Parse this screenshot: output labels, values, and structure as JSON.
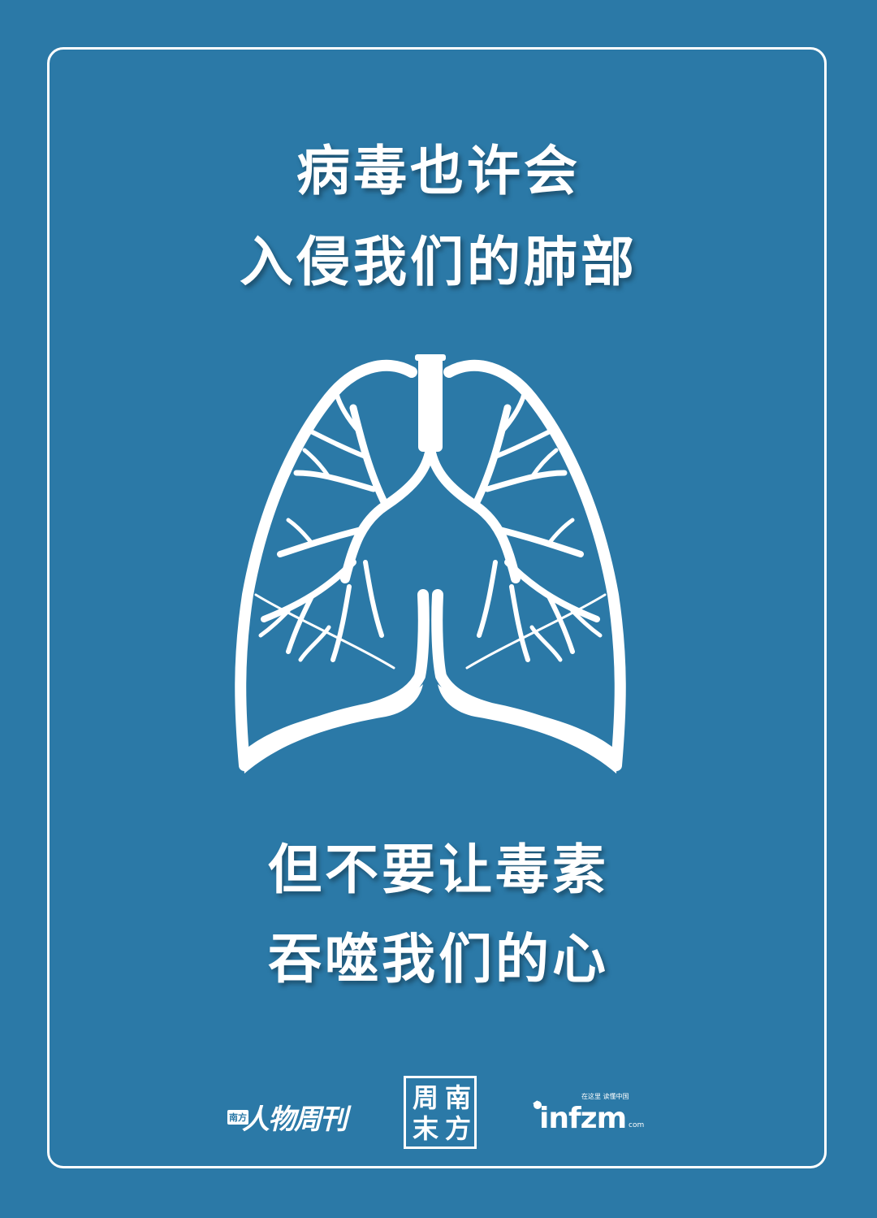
{
  "poster": {
    "line1": "病毒也许会",
    "line2": "入侵我们的肺部",
    "line3": "但不要让毒素",
    "line4": "吞噬我们的心"
  },
  "logos": {
    "people_small": "南方",
    "people_main": "人物周刊",
    "seal_chars": [
      "周",
      "南",
      "末",
      "方"
    ],
    "infzm_word": "infzm",
    "infzm_tagline": "在这里 读懂中国",
    "infzm_com": "com"
  },
  "colors": {
    "background": "#2b79a7",
    "foreground": "#ffffff"
  },
  "icons": {
    "illustration": "lungs-icon"
  }
}
